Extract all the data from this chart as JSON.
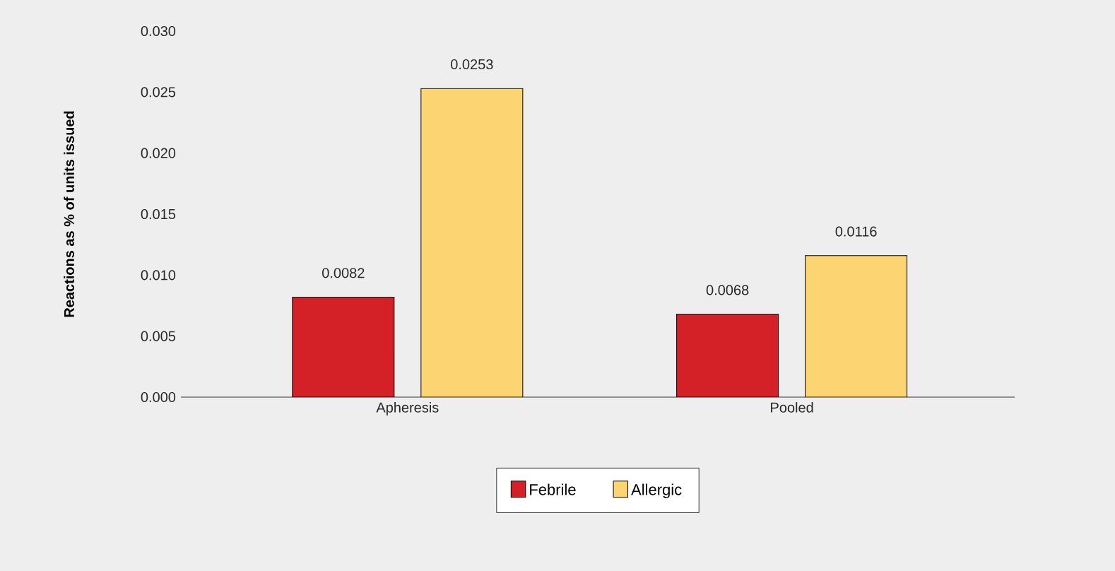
{
  "chart_data": {
    "type": "bar",
    "ylabel": "Reactions as % of units issued",
    "categories": [
      "Apheresis",
      "Pooled"
    ],
    "series": [
      {
        "name": "Febrile",
        "color": "#d42027",
        "values": [
          0.0082,
          0.0068
        ]
      },
      {
        "name": "Allergic",
        "color": "#fcd472",
        "values": [
          0.0253,
          0.0116
        ]
      }
    ],
    "ylim": [
      0,
      0.03
    ],
    "yticks": [
      {
        "value": 0,
        "label": "0.000"
      },
      {
        "value": 0.005,
        "label": "0.005"
      },
      {
        "value": 0.01,
        "label": "0.010"
      },
      {
        "value": 0.015,
        "label": "0.015"
      },
      {
        "value": 0.02,
        "label": "0.020"
      },
      {
        "value": 0.025,
        "label": "0.025"
      },
      {
        "value": 0.03,
        "label": "0.030"
      }
    ],
    "data_labels": true,
    "legend": "bottom",
    "grid": false
  }
}
